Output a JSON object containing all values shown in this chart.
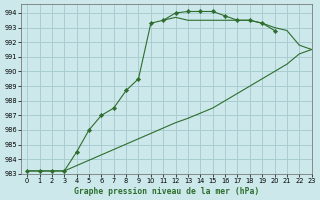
{
  "title": "Graphe pression niveau de la mer (hPa)",
  "bg": "#cce8eb",
  "grid_color": "#a8cdd0",
  "lc": "#2d6e2d",
  "xlim": [
    -0.5,
    23
  ],
  "ylim": [
    983,
    994.6
  ],
  "xticks": [
    0,
    1,
    2,
    3,
    4,
    5,
    6,
    7,
    8,
    9,
    10,
    11,
    12,
    13,
    14,
    15,
    16,
    17,
    18,
    19,
    20,
    21,
    22,
    23
  ],
  "yticks": [
    983,
    984,
    985,
    986,
    987,
    988,
    989,
    990,
    991,
    992,
    993,
    994
  ],
  "curve1_x": [
    0,
    1,
    2,
    3,
    4,
    5,
    6,
    7,
    8,
    9,
    10,
    11,
    12,
    13,
    14,
    15,
    16,
    17,
    18,
    19,
    20
  ],
  "curve1_y": [
    983.2,
    983.2,
    983.2,
    983.2,
    984.5,
    986.0,
    987.0,
    987.5,
    988.7,
    989.5,
    993.3,
    993.5,
    994.0,
    994.1,
    994.1,
    994.1,
    993.8,
    993.5,
    993.5,
    993.3,
    992.8
  ],
  "curve2_x": [
    0,
    1,
    3,
    12,
    13,
    15,
    17,
    19,
    20,
    21,
    22,
    23
  ],
  "curve2_y": [
    983.2,
    983.2,
    983.2,
    986.5,
    986.8,
    987.5,
    988.5,
    989.5,
    990.0,
    990.5,
    991.2,
    991.5
  ],
  "curve3_x": [
    11,
    12,
    13,
    14,
    15,
    16,
    17,
    18,
    19,
    20,
    21,
    22,
    23
  ],
  "curve3_y": [
    993.5,
    993.7,
    993.5,
    993.5,
    993.5,
    993.5,
    993.5,
    993.5,
    993.3,
    993.0,
    992.8,
    991.8,
    991.5
  ]
}
